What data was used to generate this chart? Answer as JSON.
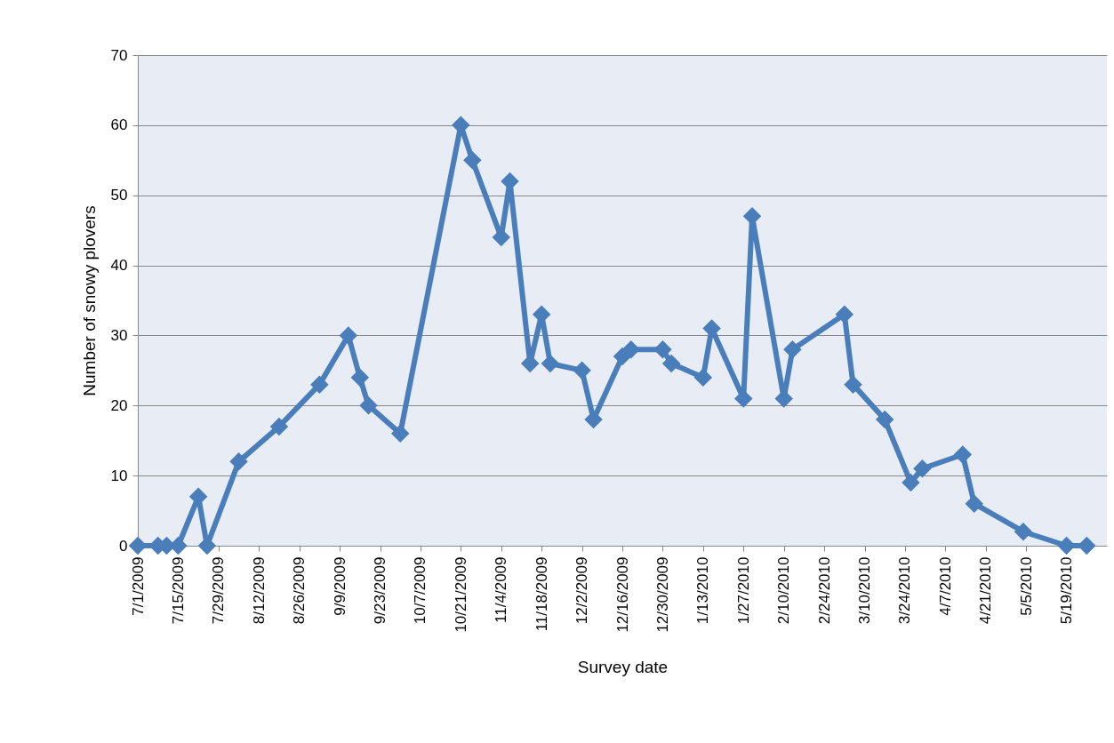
{
  "chart_data": {
    "type": "line",
    "xlabel": "Survey date",
    "ylabel": "Number  of snowy plovers",
    "x": [
      "2009-07-01",
      "2009-07-08",
      "2009-07-11",
      "2009-07-15",
      "2009-07-22",
      "2009-07-25",
      "2009-08-05",
      "2009-08-19",
      "2009-09-02",
      "2009-09-12",
      "2009-09-16",
      "2009-09-19",
      "2009-09-30",
      "2009-10-21",
      "2009-10-25",
      "2009-11-04",
      "2009-11-07",
      "2009-11-14",
      "2009-11-18",
      "2009-11-21",
      "2009-12-02",
      "2009-12-06",
      "2009-12-16",
      "2009-12-19",
      "2009-12-30",
      "2010-01-02",
      "2010-01-13",
      "2010-01-16",
      "2010-01-27",
      "2010-01-30",
      "2010-02-10",
      "2010-02-13",
      "2010-03-03",
      "2010-03-06",
      "2010-03-17",
      "2010-03-26",
      "2010-03-30",
      "2010-04-13",
      "2010-04-17",
      "2010-05-04",
      "2010-05-19",
      "2010-05-26"
    ],
    "series": [
      {
        "color": "#4a7ebb",
        "values": [
          0,
          0,
          0,
          0,
          7,
          0,
          12,
          17,
          23,
          30,
          24,
          20,
          16,
          60,
          55,
          44,
          52,
          26,
          33,
          26,
          25,
          18,
          27,
          28,
          28,
          26,
          24,
          31,
          21,
          47,
          21,
          28,
          33,
          23,
          18,
          9,
          11,
          13,
          6,
          2,
          0,
          0
        ]
      }
    ],
    "xlim": [
      "2009-07-01",
      "2010-06-02"
    ],
    "xticks": [
      {
        "value": "2009-07-01",
        "label": "7/1/2009"
      },
      {
        "value": "2009-07-15",
        "label": "7/15/2009"
      },
      {
        "value": "2009-07-29",
        "label": "7/29/2009"
      },
      {
        "value": "2009-08-12",
        "label": "8/12/2009"
      },
      {
        "value": "2009-08-26",
        "label": "8/26/2009"
      },
      {
        "value": "2009-09-09",
        "label": "9/9/2009"
      },
      {
        "value": "2009-09-23",
        "label": "9/23/2009"
      },
      {
        "value": "2009-10-07",
        "label": "10/7/2009"
      },
      {
        "value": "2009-10-21",
        "label": "10/21/2009"
      },
      {
        "value": "2009-11-04",
        "label": "11/4/2009"
      },
      {
        "value": "2009-11-18",
        "label": "11/18/2009"
      },
      {
        "value": "2009-12-02",
        "label": "12/2/2009"
      },
      {
        "value": "2009-12-16",
        "label": "12/16/2009"
      },
      {
        "value": "2009-12-30",
        "label": "12/30/2009"
      },
      {
        "value": "2010-01-13",
        "label": "1/13/2010"
      },
      {
        "value": "2010-01-27",
        "label": "1/27/2010"
      },
      {
        "value": "2010-02-10",
        "label": "2/10/2010"
      },
      {
        "value": "2010-02-24",
        "label": "2/24/2010"
      },
      {
        "value": "2010-03-10",
        "label": "3/10/2010"
      },
      {
        "value": "2010-03-24",
        "label": "3/24/2010"
      },
      {
        "value": "2010-04-07",
        "label": "4/7/2010"
      },
      {
        "value": "2010-04-21",
        "label": "4/21/2010"
      },
      {
        "value": "2010-05-05",
        "label": "5/5/2010"
      },
      {
        "value": "2010-05-19",
        "label": "5/19/2010"
      }
    ],
    "ylim": [
      0,
      70
    ],
    "yticks": [
      0,
      10,
      20,
      30,
      40,
      50,
      60,
      70
    ],
    "grid": "y",
    "legend": false,
    "marker": "diamond",
    "line_style": "solid"
  }
}
